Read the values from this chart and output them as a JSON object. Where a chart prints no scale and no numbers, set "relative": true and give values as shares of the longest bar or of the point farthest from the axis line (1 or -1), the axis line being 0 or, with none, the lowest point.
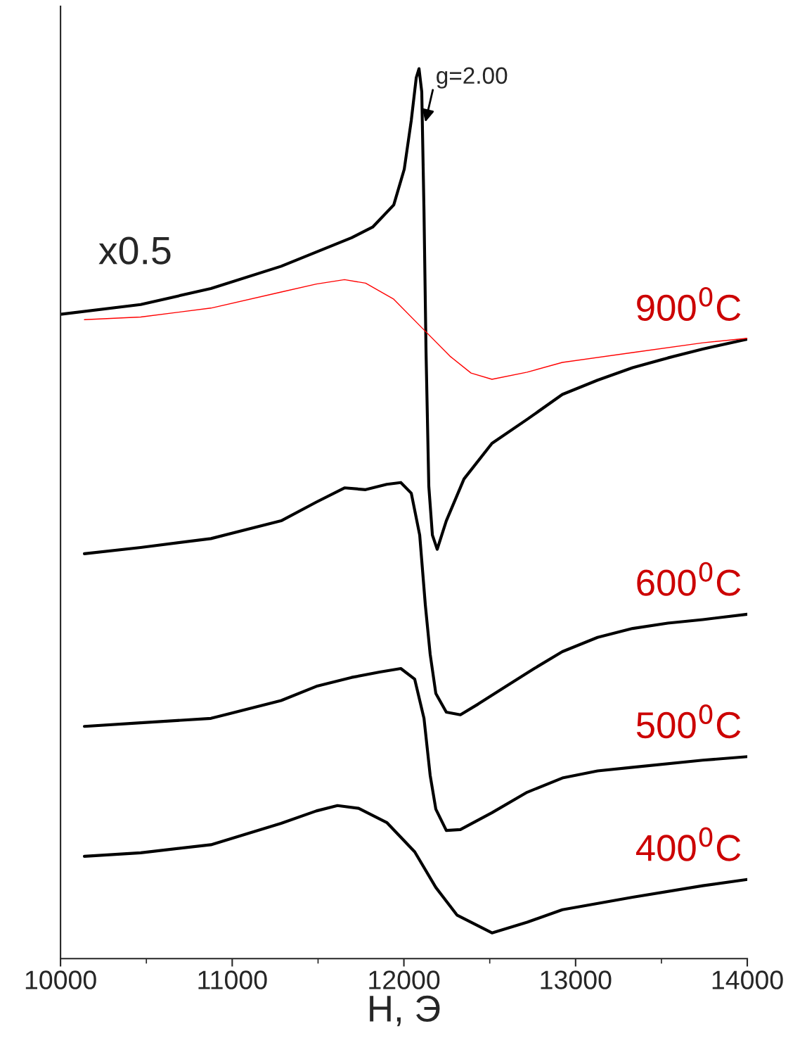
{
  "chart_data": {
    "type": "line",
    "relative": true,
    "xlabel": "H, Э",
    "xlim": [
      10000,
      14000
    ],
    "xticks": [
      10000,
      11000,
      12000,
      13000,
      14000
    ],
    "grid": false,
    "legend": false,
    "marker": "none",
    "line_style": "solid",
    "annotations": [
      "x0.5",
      {
        "text": "g=2.00",
        "x": 12125,
        "y": 0.94
      }
    ],
    "series": [
      {
        "name": "900$^{0}$C",
        "color": "#000000",
        "x": [
          10000,
          10467,
          10876,
          11285,
          11695,
          11818,
          11941,
          12002,
          12043,
          12072,
          12088,
          12104,
          12117,
          12129,
          12145,
          12166,
          12194,
          12247,
          12350,
          12513,
          12718,
          12923,
          13128,
          13332,
          13537,
          13741,
          14000
        ],
        "values": [
          0.724,
          0.735,
          0.753,
          0.778,
          0.81,
          0.822,
          0.847,
          0.887,
          0.942,
          0.99,
          1.0,
          0.974,
          0.84,
          0.681,
          0.531,
          0.476,
          0.46,
          0.492,
          0.539,
          0.579,
          0.606,
          0.634,
          0.65,
          0.664,
          0.675,
          0.685,
          0.696
        ]
      },
      {
        "color": "#ff0000",
        "x": [
          10139,
          10467,
          10876,
          11285,
          11490,
          11654,
          11777,
          11941,
          12104,
          12268,
          12391,
          12513,
          12718,
          12923,
          13332,
          13741,
          14000
        ],
        "values": [
          0.718,
          0.721,
          0.731,
          0.749,
          0.758,
          0.763,
          0.759,
          0.741,
          0.709,
          0.677,
          0.658,
          0.651,
          0.659,
          0.67,
          0.681,
          0.692,
          0.697
        ]
      },
      {
        "name": "600$^{0}$C",
        "color": "#000000",
        "x": [
          10139,
          10467,
          10876,
          11285,
          11490,
          11654,
          11777,
          11900,
          11982,
          12043,
          12092,
          12125,
          12153,
          12186,
          12247,
          12329,
          12432,
          12595,
          12759,
          12923,
          13128,
          13332,
          13537,
          13741,
          14000
        ],
        "values": [
          0.455,
          0.462,
          0.472,
          0.492,
          0.513,
          0.529,
          0.527,
          0.533,
          0.535,
          0.523,
          0.476,
          0.397,
          0.342,
          0.298,
          0.277,
          0.274,
          0.286,
          0.306,
          0.326,
          0.345,
          0.361,
          0.371,
          0.377,
          0.381,
          0.387
        ]
      },
      {
        "name": "500$^{0}$C",
        "color": "#000000",
        "x": [
          10139,
          10467,
          10876,
          11285,
          11490,
          11695,
          11859,
          11982,
          12063,
          12117,
          12153,
          12186,
          12247,
          12329,
          12513,
          12718,
          12923,
          13128,
          13332,
          13741,
          14000
        ],
        "values": [
          0.261,
          0.265,
          0.27,
          0.29,
          0.306,
          0.316,
          0.322,
          0.326,
          0.314,
          0.27,
          0.206,
          0.168,
          0.144,
          0.145,
          0.164,
          0.187,
          0.203,
          0.211,
          0.215,
          0.223,
          0.227
        ]
      },
      {
        "name": "400$^{0}$C",
        "color": "#000000",
        "x": [
          10139,
          10467,
          10876,
          11285,
          11490,
          11613,
          11736,
          11900,
          12063,
          12186,
          12309,
          12513,
          12718,
          12923,
          13332,
          13741,
          14000
        ],
        "values": [
          0.115,
          0.119,
          0.128,
          0.152,
          0.166,
          0.172,
          0.169,
          0.153,
          0.12,
          0.08,
          0.049,
          0.029,
          0.041,
          0.055,
          0.069,
          0.082,
          0.089
        ]
      }
    ]
  }
}
